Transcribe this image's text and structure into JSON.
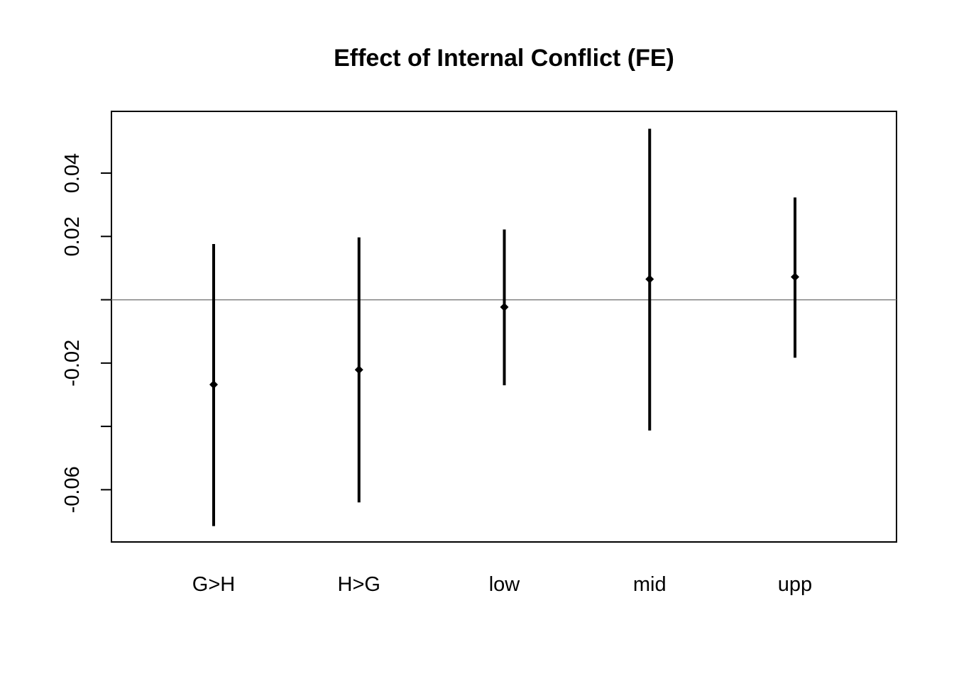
{
  "chart_data": {
    "type": "errorbar",
    "title": "Effect of Internal Conflict (FE)",
    "xlabel": "",
    "ylabel": "",
    "categories": [
      "G>H",
      "H>G",
      "low",
      "mid",
      "upp"
    ],
    "estimates": [
      -0.0268,
      -0.0221,
      -0.0023,
      0.0065,
      0.0072
    ],
    "lower": [
      -0.0715,
      -0.064,
      -0.027,
      -0.0413,
      -0.0183
    ],
    "upper": [
      0.0176,
      0.0197,
      0.0222,
      0.054,
      0.0323
    ],
    "ylim": [
      -0.0765,
      0.0595
    ],
    "yticks": [
      -0.06,
      -0.04,
      -0.02,
      0.0,
      0.02,
      0.04
    ],
    "ytick_labels": [
      "-0.06",
      "",
      "-0.02",
      "",
      "0.02",
      "0.04"
    ],
    "reference_line": 0,
    "reference_line_color": "#808080",
    "mark_color": "#000000",
    "grid": false,
    "legend": "none"
  }
}
